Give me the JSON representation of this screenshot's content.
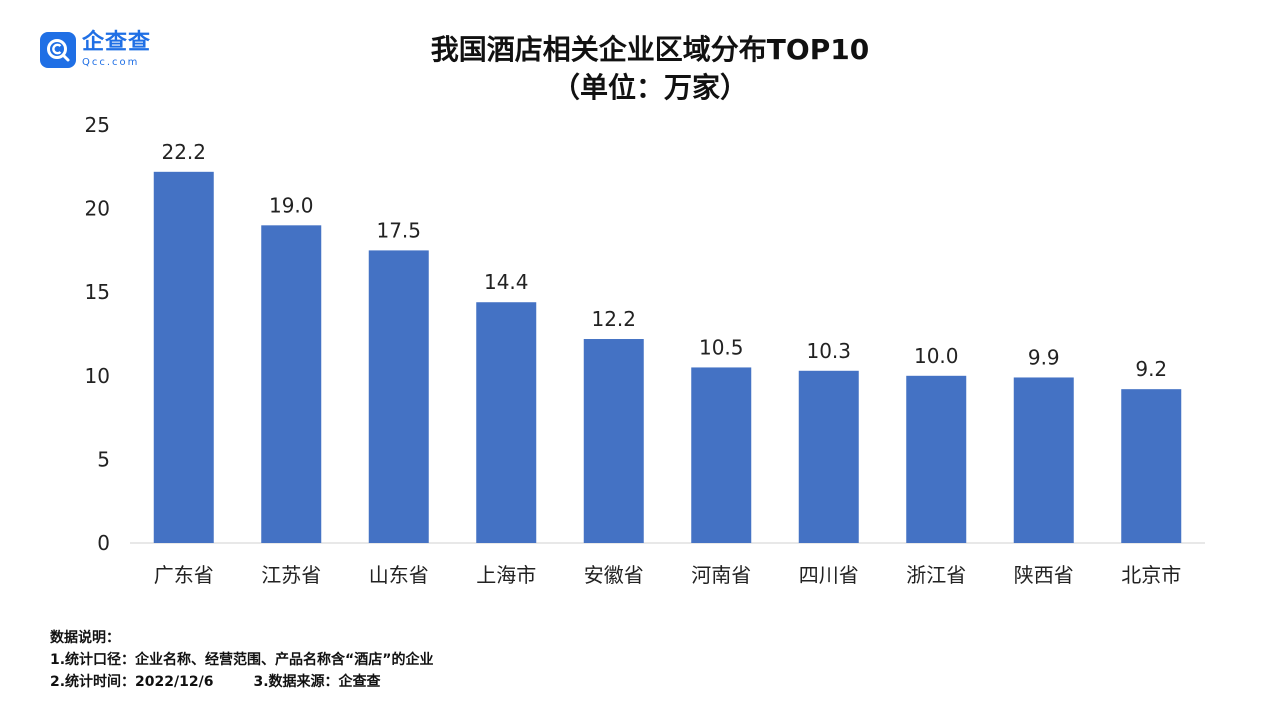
{
  "logo": {
    "name": "企查查",
    "domain": "Qcc.com",
    "icon": "magnifier-c-icon",
    "color": "#1f6fe5"
  },
  "title": "我国酒店相关企业区域分布TOP10",
  "subtitle": "（单位：万家）",
  "chart_data": {
    "type": "bar",
    "categories": [
      "广东省",
      "江苏省",
      "山东省",
      "上海市",
      "安徽省",
      "河南省",
      "四川省",
      "浙江省",
      "陕西省",
      "北京市"
    ],
    "values": [
      22.2,
      19.0,
      17.5,
      14.4,
      12.2,
      10.5,
      10.3,
      10.0,
      9.9,
      9.2
    ],
    "value_labels": [
      "22.2",
      "19.0",
      "17.5",
      "14.4",
      "12.2",
      "10.5",
      "10.3",
      "10.0",
      "9.9",
      "9.2"
    ],
    "ylim": [
      0,
      25
    ],
    "yticks": [
      "0",
      "5",
      "10",
      "15",
      "20",
      "25"
    ],
    "grid": false,
    "bar_color": "#4472c4",
    "xlabel": "",
    "ylabel": ""
  },
  "notes": {
    "heading": "数据说明：",
    "line1": "1.统计口径：企业名称、经营范围、产品名称含“酒店”的企业",
    "line2a": "2.统计时间：2022/12/6",
    "line2b": "3.数据来源：企查查"
  }
}
